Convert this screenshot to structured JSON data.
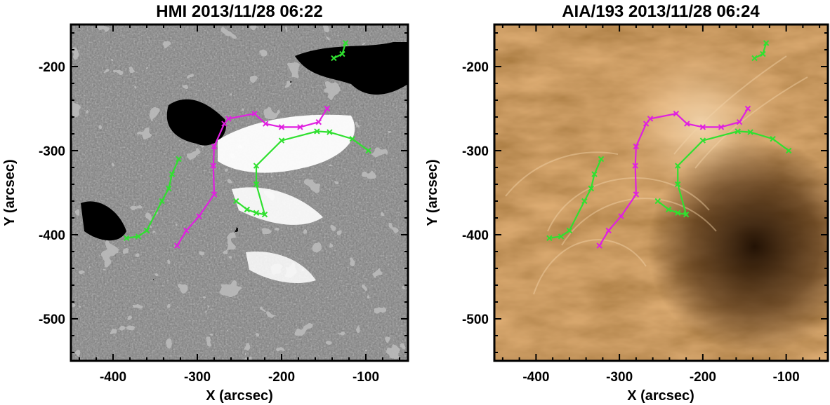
{
  "panels": [
    {
      "title": "HMI 2013/11/28 06:22",
      "xlabel": "X (arcsec)",
      "ylabel": "Y (arcsec)",
      "xticks": [
        "-400",
        "-300",
        "-200",
        "-100"
      ],
      "yticks": [
        "-200",
        "-300",
        "-400",
        "-500"
      ],
      "image": "grayscale magnetogram"
    },
    {
      "title": "AIA/193 2013/11/28 06:24",
      "xlabel": "X (arcsec)",
      "ylabel": "Y (arcsec)",
      "xticks": [
        "-400",
        "-300",
        "-200",
        "-100"
      ],
      "yticks": [
        "-200",
        "-300",
        "-400",
        "-500"
      ],
      "image": "EUV 193 Angstrom coronal image"
    }
  ],
  "chart_data": {
    "type": "line",
    "xlim": [
      -450,
      -50
    ],
    "ylim": [
      -550,
      -150
    ],
    "colors": {
      "magenta": "#e020e0",
      "green": "#30e030"
    },
    "marker": "x",
    "series": [
      {
        "color": "magenta",
        "points": [
          [
            -324,
            -413
          ],
          [
            -313,
            -395
          ],
          [
            -298,
            -378
          ],
          [
            -280,
            -352
          ],
          [
            -281,
            -318
          ],
          [
            -280,
            -295
          ],
          [
            -268,
            -268
          ],
          [
            -263,
            -262
          ],
          [
            -232,
            -256
          ],
          [
            -219,
            -268
          ],
          [
            -200,
            -272
          ],
          [
            -178,
            -272
          ],
          [
            -156,
            -266
          ],
          [
            -146,
            -250
          ]
        ]
      },
      {
        "color": "green",
        "points": [
          [
            -384,
            -404
          ],
          [
            -370,
            -402
          ],
          [
            -360,
            -395
          ],
          [
            -342,
            -360
          ],
          [
            -334,
            -345
          ],
          [
            -330,
            -328
          ],
          [
            -322,
            -310
          ]
        ]
      },
      {
        "color": "green",
        "points": [
          [
            -254,
            -360
          ],
          [
            -241,
            -370
          ],
          [
            -230,
            -374
          ],
          [
            -220,
            -376
          ],
          [
            -230,
            -340
          ],
          [
            -230,
            -318
          ],
          [
            -200,
            -288
          ],
          [
            -158,
            -277
          ],
          [
            -143,
            -278
          ],
          [
            -116,
            -286
          ],
          [
            -97,
            -300
          ]
        ]
      },
      {
        "color": "green",
        "points": [
          [
            -138,
            -190
          ],
          [
            -128,
            -185
          ],
          [
            -124,
            -172
          ]
        ]
      }
    ]
  }
}
